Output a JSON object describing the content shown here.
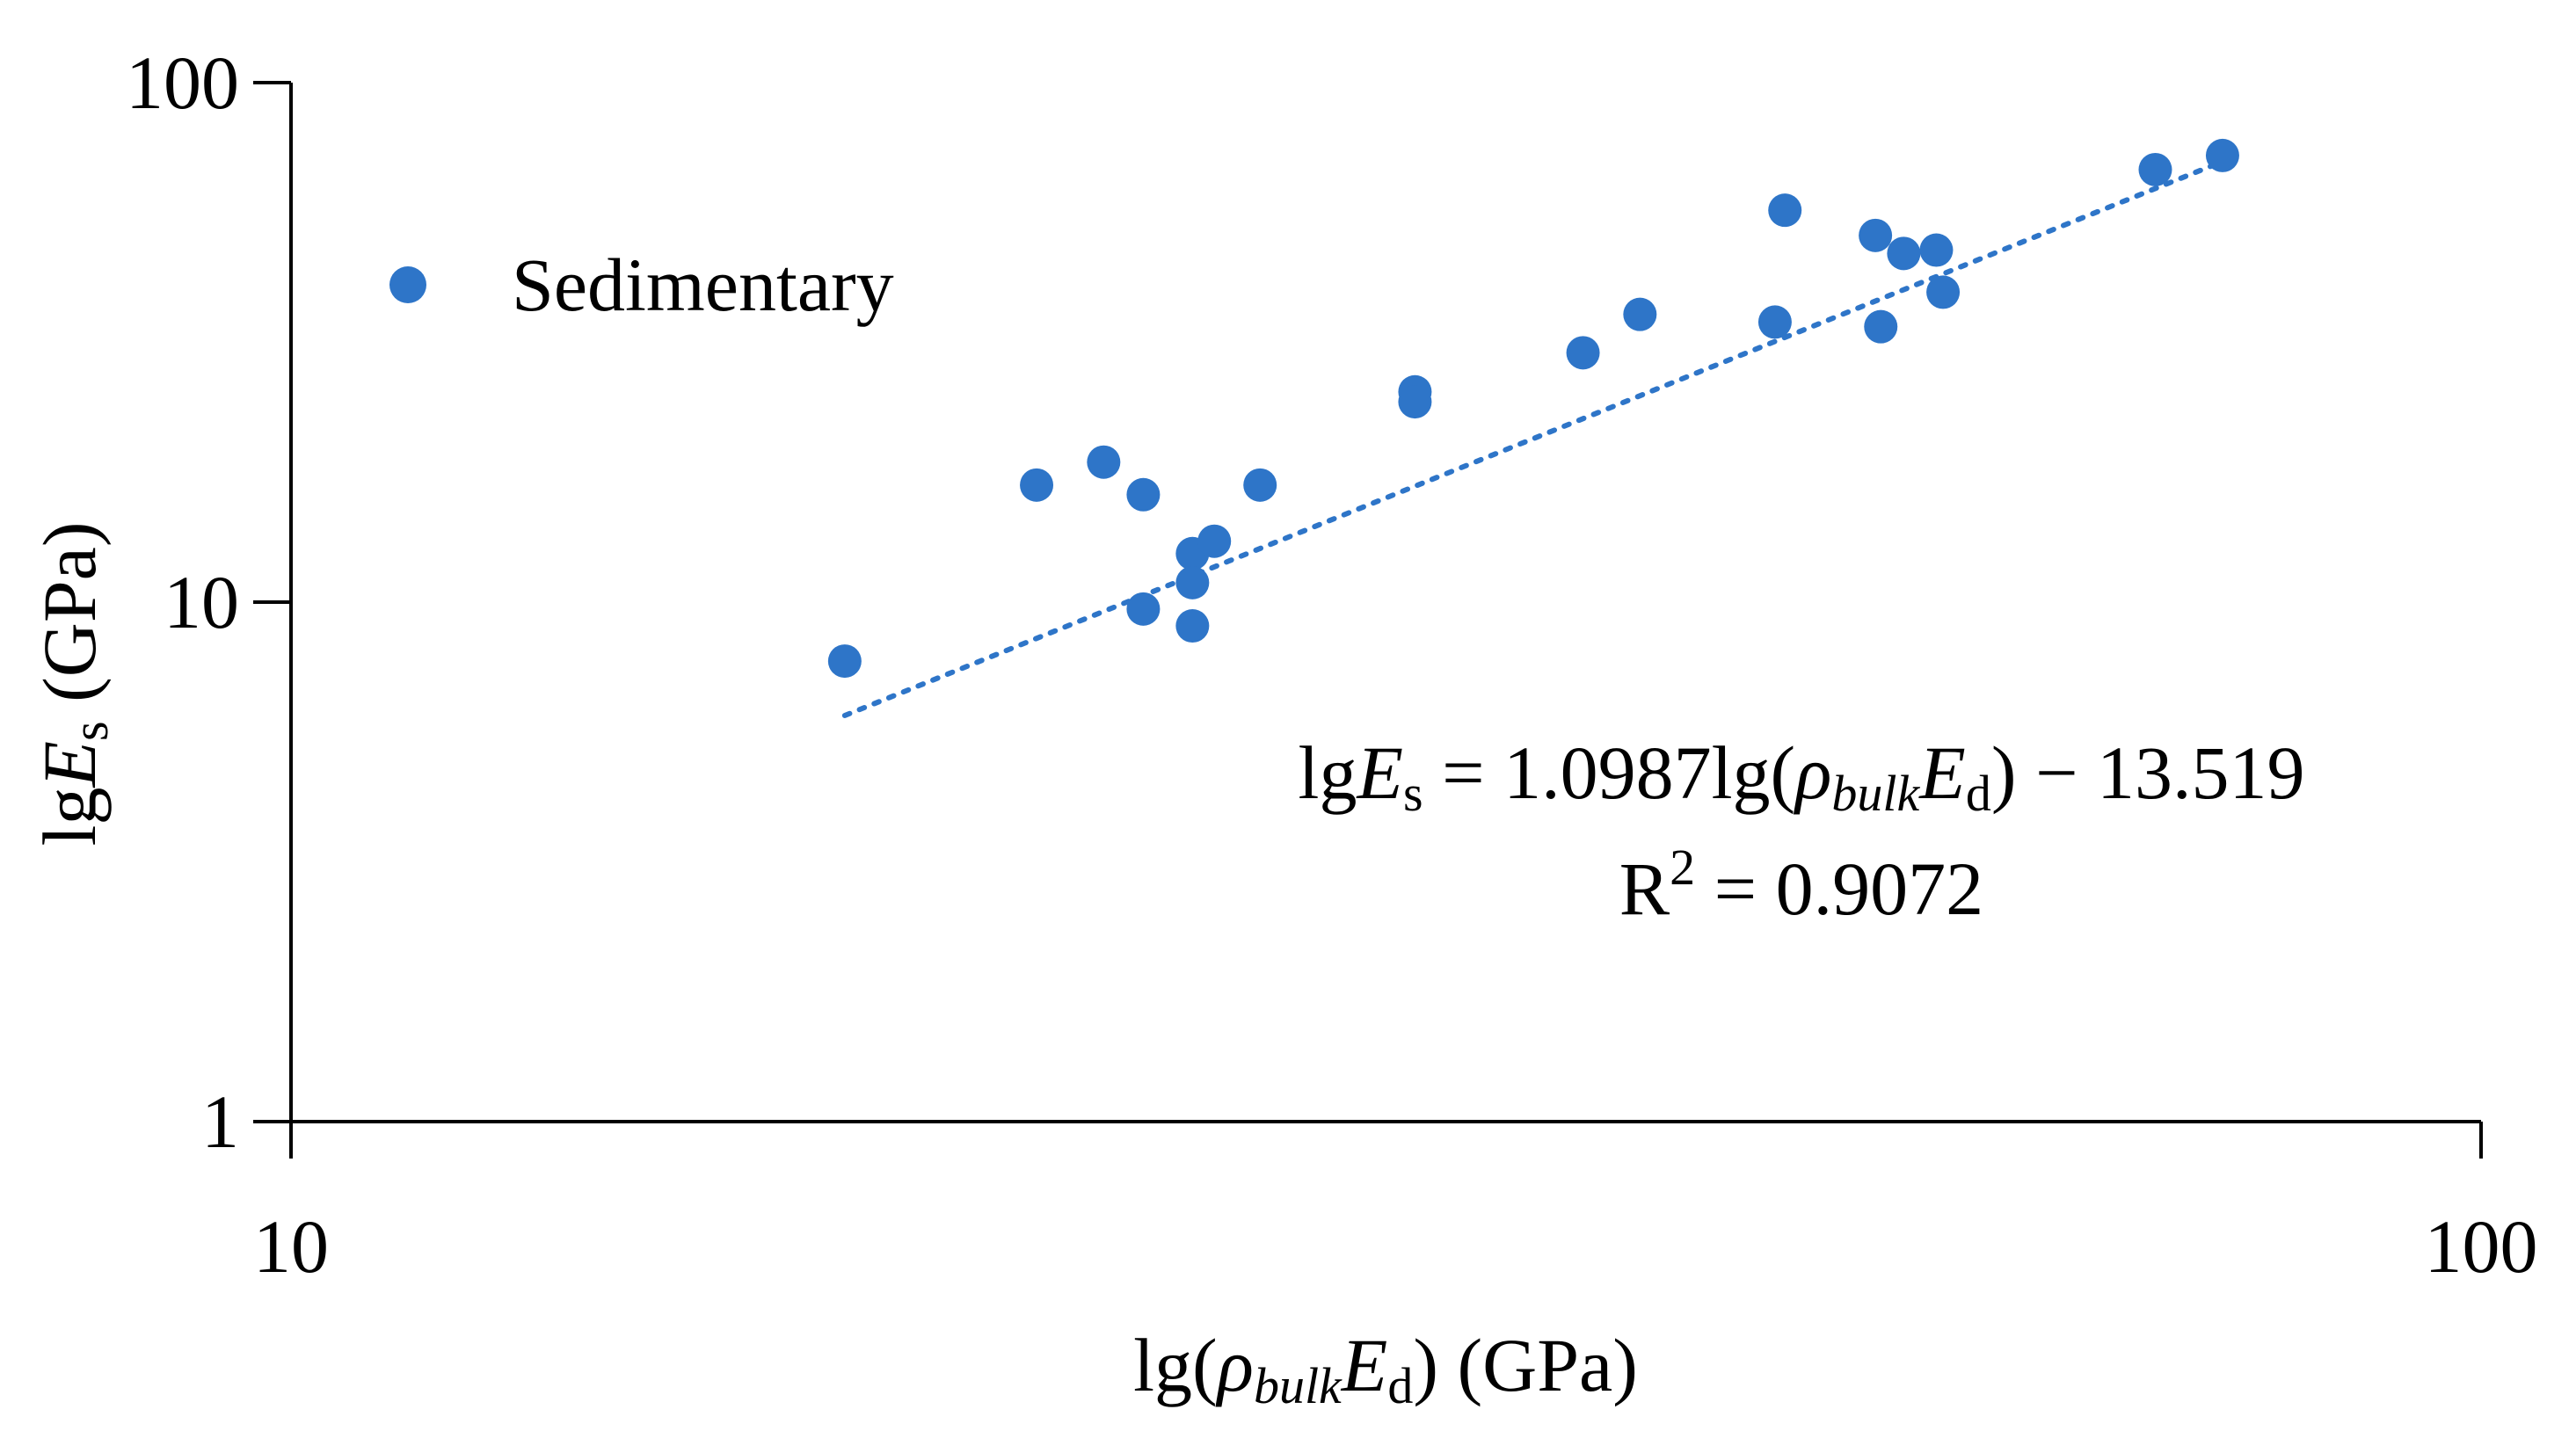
{
  "colors": {
    "marker": "#2E75C8",
    "axis": "#000000"
  },
  "chart_data": {
    "type": "scatter",
    "title": "",
    "xscale": "log",
    "yscale": "log",
    "xlim": [
      10,
      100
    ],
    "ylim": [
      1,
      100
    ],
    "x_ticks": [
      "10",
      "100"
    ],
    "y_ticks": [
      "1",
      "10",
      "100"
    ],
    "xlabel": {
      "prefix": "lg(",
      "rho": "ρ",
      "rho_sub": "bulk",
      "E": "E",
      "E_sub": "d",
      "suffix": ") (GPa)"
    },
    "ylabel": {
      "prefix": "lg",
      "E": "E",
      "E_sub": "s",
      "suffix": " (GPa)"
    },
    "legend": {
      "entries": [
        "Sedimentary"
      ],
      "placement": "top-left"
    },
    "series": [
      {
        "name": "Sedimentary",
        "marker": "circle",
        "points": [
          [
            17.9,
            7.7
          ],
          [
            21.9,
            16.8
          ],
          [
            23.5,
            18.6
          ],
          [
            24.5,
            16.1
          ],
          [
            24.5,
            9.7
          ],
          [
            25.8,
            12.4
          ],
          [
            25.8,
            10.9
          ],
          [
            25.8,
            9.0
          ],
          [
            26.4,
            13.1
          ],
          [
            27.7,
            16.8
          ],
          [
            32.6,
            25.4
          ],
          [
            32.6,
            24.3
          ],
          [
            38.9,
            30.2
          ],
          [
            41.3,
            35.8
          ],
          [
            47.6,
            34.6
          ],
          [
            48.1,
            56.8
          ],
          [
            52.9,
            50.8
          ],
          [
            53.2,
            33.9
          ],
          [
            54.5,
            46.9
          ],
          [
            56.4,
            47.6
          ],
          [
            56.8,
            39.5
          ],
          [
            71.0,
            68.0
          ],
          [
            76.2,
            72.4
          ]
        ]
      }
    ],
    "trendline": {
      "style": "dotted",
      "type": "power",
      "x_range": [
        17.9,
        76.2
      ],
      "y_range": [
        6.05,
        70.5
      ]
    },
    "equation": {
      "lhs_prefix": "lg",
      "lhs_E": "E",
      "lhs_sub": "s",
      "mid": " = 1.0987lg(",
      "rho": "ρ",
      "rho_sub": "bulk",
      "E": "E",
      "E_sub": "d",
      "rhs": ") − 13.519",
      "r2_label": "R",
      "r2_sup": "2",
      "r2_value": " = 0.9072"
    }
  }
}
